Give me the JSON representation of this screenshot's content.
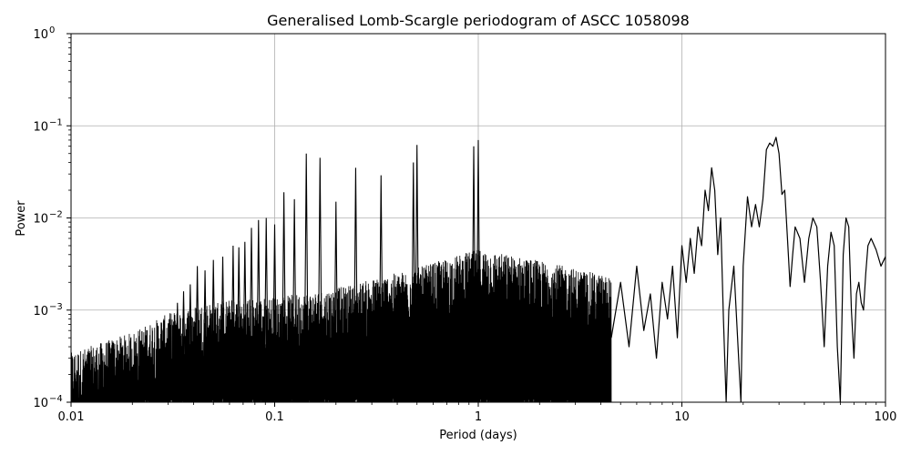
{
  "chart_data": {
    "type": "line",
    "title": "Generalised Lomb-Scargle periodogram of ASCC 1058098",
    "xlabel": "Period (days)",
    "ylabel": "Power",
    "xscale": "log",
    "yscale": "log",
    "xlim": [
      0.01,
      100
    ],
    "ylim": [
      0.0001,
      1
    ],
    "grid": true,
    "x_ticks": [
      {
        "value": 0.01,
        "label": "0.01"
      },
      {
        "value": 0.1,
        "label": "0.1"
      },
      {
        "value": 1,
        "label": "1"
      },
      {
        "value": 10,
        "label": "10"
      },
      {
        "value": 100,
        "label": "100"
      }
    ],
    "y_ticks": [
      {
        "value": 0.0001,
        "base": "10",
        "exp": "−4"
      },
      {
        "value": 0.001,
        "base": "10",
        "exp": "−3"
      },
      {
        "value": 0.01,
        "base": "10",
        "exp": "−2"
      },
      {
        "value": 0.1,
        "base": "10",
        "exp": "−1"
      },
      {
        "value": 1,
        "base": "10",
        "exp": "0"
      }
    ],
    "line_color": "#000000",
    "grid_color": "#b0b0b0",
    "dense_region": {
      "x_range": [
        0.01,
        4.5
      ],
      "floor_power": 0.0001,
      "envelope": {
        "x": [
          0.01,
          0.02,
          0.03,
          0.05,
          0.1,
          0.2,
          0.5,
          1,
          2,
          4.5
        ],
        "y": [
          0.0003,
          0.0005,
          0.0008,
          0.0011,
          0.0012,
          0.0015,
          0.0025,
          0.004,
          0.003,
          0.002
        ]
      }
    },
    "peaks": [
      {
        "x": 0.0333,
        "y": 0.0012
      },
      {
        "x": 0.0357,
        "y": 0.0016
      },
      {
        "x": 0.0385,
        "y": 0.0019
      },
      {
        "x": 0.0417,
        "y": 0.003
      },
      {
        "x": 0.0455,
        "y": 0.0027
      },
      {
        "x": 0.05,
        "y": 0.0035
      },
      {
        "x": 0.0556,
        "y": 0.0038
      },
      {
        "x": 0.0625,
        "y": 0.005
      },
      {
        "x": 0.0667,
        "y": 0.0048
      },
      {
        "x": 0.0714,
        "y": 0.0055
      },
      {
        "x": 0.0769,
        "y": 0.0078
      },
      {
        "x": 0.0833,
        "y": 0.0095
      },
      {
        "x": 0.0909,
        "y": 0.01
      },
      {
        "x": 0.1,
        "y": 0.0085
      },
      {
        "x": 0.111,
        "y": 0.019
      },
      {
        "x": 0.125,
        "y": 0.016
      },
      {
        "x": 0.143,
        "y": 0.05
      },
      {
        "x": 0.167,
        "y": 0.045
      },
      {
        "x": 0.2,
        "y": 0.015
      },
      {
        "x": 0.25,
        "y": 0.035
      },
      {
        "x": 0.333,
        "y": 0.029
      },
      {
        "x": 0.5,
        "y": 0.062
      },
      {
        "x": 0.48,
        "y": 0.04
      },
      {
        "x": 0.95,
        "y": 0.06
      },
      {
        "x": 1.0,
        "y": 0.07
      }
    ],
    "curve": {
      "x": [
        4.5,
        5,
        5.5,
        6,
        6.5,
        7,
        7.5,
        8,
        8.5,
        9,
        9.5,
        10,
        10.5,
        11,
        11.5,
        12,
        12.5,
        13,
        13.5,
        14,
        14.5,
        15,
        15.5,
        16,
        16.5,
        17,
        18,
        19,
        19.5,
        20,
        21,
        22,
        23,
        24,
        25,
        26,
        27,
        28,
        29,
        30,
        31,
        32,
        33,
        34,
        35,
        36,
        38,
        40,
        42,
        44,
        46,
        48,
        50,
        52,
        54,
        56,
        58,
        60,
        62,
        64,
        66,
        68,
        70,
        72,
        74,
        76,
        78,
        80,
        82,
        85,
        90,
        95,
        100
      ],
      "y": [
        0.0005,
        0.002,
        0.0004,
        0.003,
        0.0006,
        0.0015,
        0.0003,
        0.002,
        0.0008,
        0.003,
        0.0005,
        0.005,
        0.002,
        0.006,
        0.0025,
        0.008,
        0.005,
        0.02,
        0.012,
        0.035,
        0.02,
        0.004,
        0.01,
        0.0008,
        0.0001,
        0.001,
        0.003,
        0.0003,
        0.0001,
        0.003,
        0.017,
        0.008,
        0.014,
        0.008,
        0.016,
        0.055,
        0.065,
        0.06,
        0.075,
        0.05,
        0.018,
        0.02,
        0.006,
        0.0018,
        0.004,
        0.008,
        0.006,
        0.002,
        0.006,
        0.01,
        0.008,
        0.002,
        0.0004,
        0.003,
        0.007,
        0.005,
        0.0004,
        0.0001,
        0.004,
        0.01,
        0.008,
        0.001,
        0.0003,
        0.0015,
        0.002,
        0.0012,
        0.001,
        0.0025,
        0.005,
        0.006,
        0.0045,
        0.003,
        0.0038
      ]
    }
  }
}
